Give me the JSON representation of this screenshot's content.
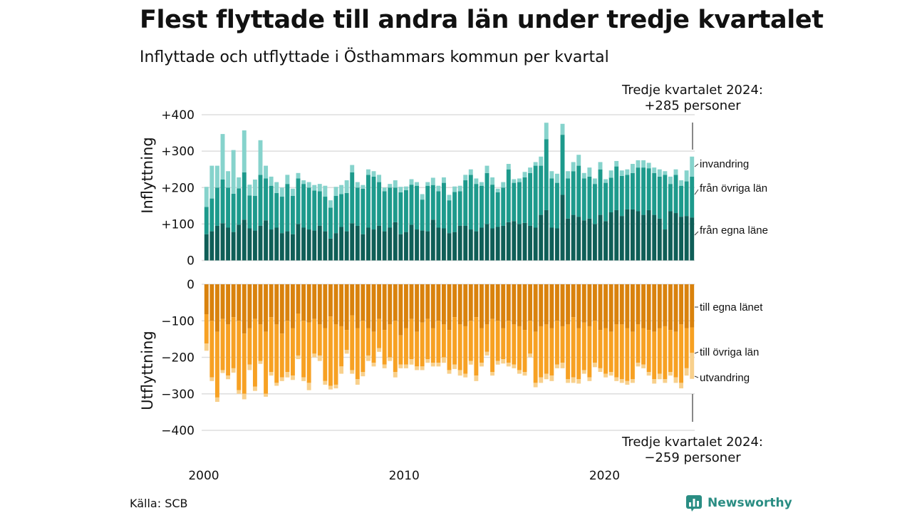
{
  "header": {
    "title": "Flest flyttade till andra län under tredje kvartalet",
    "subtitle": "Inflyttade och utflyttade i Östhammars kommun per kvartal"
  },
  "footer": {
    "source": "Källa: SCB",
    "brand": "Newsworthy"
  },
  "annotations": {
    "top_line1": "Tredje kvartalet 2024:",
    "top_line2": "+285 personer",
    "bottom_line1": "Tredje kvartalet 2024:",
    "bottom_line2": "−259 personer"
  },
  "colors": {
    "in_own_county": "#0f5e57",
    "in_other_counties": "#1d9a8c",
    "in_immigration": "#86d3cc",
    "out_own_county": "#d9820d",
    "out_other_counties": "#f7a123",
    "out_emigration": "#f8d08c",
    "brand": "#2a8d83"
  },
  "chart_data": [
    {
      "type": "bar",
      "stacked": true,
      "ylabel": "Inflyttning",
      "ylim": [
        0,
        400
      ],
      "yticks": [
        0,
        100,
        200,
        300,
        400
      ],
      "ytick_labels": [
        "0",
        "+100",
        "+200",
        "+300",
        "+400"
      ],
      "grid": true,
      "series": [
        {
          "name": "från egna läne",
          "color": "#0f5e57",
          "values": [
            72,
            80,
            95,
            102,
            90,
            78,
            98,
            112,
            88,
            82,
            95,
            110,
            85,
            90,
            75,
            80,
            72,
            100,
            90,
            85,
            82,
            95,
            80,
            60,
            75,
            92,
            80,
            102,
            95,
            72,
            90,
            85,
            95,
            80,
            90,
            105,
            72,
            78,
            98,
            85,
            82,
            80,
            112,
            90,
            88,
            75,
            78,
            95,
            95,
            85,
            80,
            90,
            100,
            88,
            92,
            95,
            105,
            108,
            100,
            103,
            95,
            90,
            125,
            138,
            90,
            88,
            180,
            115,
            125,
            120,
            110,
            115,
            100,
            125,
            108,
            132,
            138,
            122,
            140,
            140,
            135,
            125,
            138,
            125,
            115,
            85,
            135,
            130,
            120,
            122,
            118
          ]
        },
        {
          "name": "från övriga län",
          "color": "#1d9a8c",
          "values": [
            75,
            90,
            105,
            120,
            110,
            105,
            100,
            130,
            90,
            95,
            140,
            115,
            120,
            95,
            100,
            130,
            105,
            125,
            120,
            115,
            110,
            95,
            95,
            85,
            102,
            90,
            105,
            140,
            105,
            125,
            145,
            145,
            120,
            110,
            110,
            95,
            115,
            115,
            110,
            120,
            85,
            125,
            95,
            100,
            125,
            90,
            110,
            95,
            125,
            150,
            130,
            115,
            140,
            120,
            95,
            105,
            145,
            105,
            115,
            125,
            145,
            170,
            135,
            195,
            135,
            125,
            165,
            110,
            120,
            140,
            115,
            115,
            110,
            125,
            105,
            95,
            120,
            110,
            95,
            100,
            120,
            130,
            115,
            115,
            115,
            150,
            75,
            105,
            85,
            95,
            112
          ]
        },
        {
          "name": "invandring",
          "color": "#86d3cc",
          "values": [
            55,
            90,
            60,
            125,
            45,
            120,
            30,
            115,
            30,
            45,
            95,
            35,
            25,
            30,
            25,
            25,
            20,
            15,
            10,
            15,
            15,
            20,
            30,
            20,
            25,
            25,
            35,
            20,
            15,
            10,
            15,
            15,
            20,
            10,
            10,
            20,
            15,
            10,
            15,
            10,
            15,
            10,
            20,
            15,
            15,
            15,
            15,
            15,
            15,
            15,
            15,
            10,
            20,
            20,
            10,
            15,
            15,
            10,
            10,
            15,
            15,
            10,
            25,
            45,
            20,
            25,
            30,
            20,
            25,
            30,
            15,
            25,
            15,
            20,
            10,
            20,
            15,
            15,
            15,
            25,
            20,
            20,
            15,
            15,
            20,
            10,
            20,
            15,
            15,
            30,
            55
          ]
        }
      ]
    },
    {
      "type": "bar",
      "stacked": true,
      "ylabel": "Utflyttning",
      "ylim": [
        -400,
        0
      ],
      "yticks": [
        0,
        -100,
        -200,
        -300,
        -400
      ],
      "ytick_labels": [
        "0",
        "−100",
        "−200",
        "−300",
        "−400"
      ],
      "grid": true,
      "x_range": [
        2000,
        2024.5
      ],
      "xticks": [
        2000,
        2010,
        2020
      ],
      "series": [
        {
          "name": "till egna länet",
          "color": "#d9820d",
          "values": [
            -82,
            -100,
            -130,
            -95,
            -110,
            -90,
            -100,
            -135,
            -120,
            -95,
            -110,
            -130,
            -90,
            -110,
            -135,
            -100,
            -120,
            -80,
            -100,
            -105,
            -95,
            -110,
            -120,
            -88,
            -110,
            -115,
            -125,
            -85,
            -120,
            -100,
            -120,
            -130,
            -95,
            -125,
            -110,
            -100,
            -140,
            -120,
            -95,
            -130,
            -105,
            -95,
            -120,
            -100,
            -110,
            -125,
            -90,
            -110,
            -115,
            -100,
            -90,
            -120,
            -110,
            -95,
            -100,
            -120,
            -100,
            -110,
            -115,
            -125,
            -100,
            -130,
            -115,
            -110,
            -120,
            -100,
            -115,
            -110,
            -90,
            -120,
            -105,
            -115,
            -100,
            -125,
            -120,
            -130,
            -110,
            -110,
            -120,
            -130,
            -110,
            -120,
            -125,
            -130,
            -120,
            -115,
            -125,
            -130,
            -110,
            -120,
            -118
          ]
        },
        {
          "name": "till övriga län",
          "color": "#f7a123",
          "values": [
            -80,
            -155,
            -180,
            -140,
            -140,
            -140,
            -190,
            -165,
            -100,
            -185,
            -100,
            -170,
            -150,
            -160,
            -120,
            -140,
            -130,
            -115,
            -155,
            -165,
            -95,
            -85,
            -145,
            -190,
            -165,
            -110,
            -55,
            -150,
            -140,
            -140,
            -75,
            -85,
            -80,
            -95,
            -90,
            -140,
            -80,
            -100,
            -110,
            -95,
            -120,
            -110,
            -95,
            -115,
            -90,
            -110,
            -130,
            -125,
            -130,
            -110,
            -160,
            -95,
            -75,
            -145,
            -110,
            -85,
            -115,
            -110,
            -120,
            -115,
            -90,
            -140,
            -140,
            -135,
            -130,
            -120,
            -100,
            -150,
            -165,
            -140,
            -130,
            -140,
            -115,
            -105,
            -125,
            -110,
            -145,
            -150,
            -145,
            -130,
            -105,
            -100,
            -115,
            -130,
            -125,
            -145,
            -115,
            -125,
            -160,
            -110,
            -70
          ]
        },
        {
          "name": "utvandring",
          "color": "#f8d08c",
          "values": [
            -20,
            -10,
            -12,
            -8,
            -10,
            -12,
            -10,
            -15,
            -15,
            -12,
            -8,
            -8,
            -10,
            -8,
            -10,
            -15,
            -12,
            -10,
            -10,
            -20,
            -10,
            -15,
            -10,
            -10,
            -10,
            -20,
            -10,
            -10,
            -15,
            -12,
            -15,
            -10,
            -10,
            -10,
            -10,
            -15,
            -10,
            -10,
            -15,
            -10,
            -10,
            -10,
            -10,
            -10,
            -15,
            -10,
            -12,
            -15,
            -10,
            -10,
            -15,
            -10,
            -10,
            -10,
            -10,
            -12,
            -10,
            -10,
            -10,
            -10,
            -10,
            -12,
            -15,
            -15,
            -15,
            -10,
            -15,
            -10,
            -15,
            -12,
            -10,
            -10,
            -12,
            -10,
            -10,
            -10,
            -10,
            -10,
            -10,
            -10,
            -10,
            -10,
            -10,
            -12,
            -15,
            -10,
            -10,
            -15,
            -15,
            -20,
            -71
          ]
        }
      ]
    }
  ],
  "segment_labels": {
    "top": [
      "invandring",
      "från övriga län",
      "från egna läne"
    ],
    "bottom": [
      "till egna länet",
      "till övriga län",
      "utvandring"
    ]
  }
}
